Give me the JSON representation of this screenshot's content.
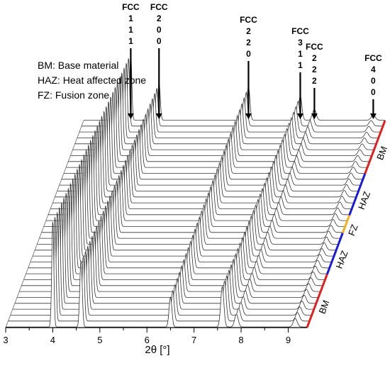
{
  "chart_data": {
    "type": "line",
    "subtype": "waterfall-3d",
    "title": "",
    "xlabel": "2θ [°]",
    "ylabel": "",
    "xlim": [
      3,
      9.4
    ],
    "x_ticks": [
      "3",
      "4",
      "5",
      "6",
      "7",
      "8",
      "9"
    ],
    "n_scans": 36,
    "legend": [
      "BM: Base material",
      "HAZ: Heat affected zone",
      "FZ: Fusion zone"
    ],
    "peaks": [
      {
        "label": [
          "FCC",
          "1",
          "1",
          "1"
        ],
        "two_theta": 4.0
      },
      {
        "label": [
          "FCC",
          "2",
          "0",
          "0"
        ],
        "two_theta": 4.6
      },
      {
        "label": [
          "FCC",
          "2",
          "2",
          "0"
        ],
        "two_theta": 6.5
      },
      {
        "label": [
          "FCC",
          "3",
          "1",
          "1"
        ],
        "two_theta": 7.6
      },
      {
        "label": [
          "FCC",
          "2",
          "2",
          "2"
        ],
        "two_theta": 7.9
      },
      {
        "label": [
          "FCC",
          "4",
          "0",
          "0"
        ],
        "two_theta": 9.15
      }
    ],
    "zones": [
      {
        "name": "BM",
        "from_scan": 0,
        "to_scan": 9,
        "color": "#e02020"
      },
      {
        "name": "HAZ",
        "from_scan": 9,
        "to_scan": 16,
        "color": "#1a1adc"
      },
      {
        "name": "FZ",
        "from_scan": 16,
        "to_scan": 19,
        "color": "#f0b020"
      },
      {
        "name": "HAZ",
        "from_scan": 19,
        "to_scan": 26,
        "color": "#1a1adc"
      },
      {
        "name": "BM",
        "from_scan": 26,
        "to_scan": 36,
        "color": "#e02020"
      }
    ],
    "relative_intensities": {
      "front_scan": [
        1.0,
        0.62,
        0.28,
        0.38,
        0.12,
        0.08
      ],
      "back_scan": [
        1.0,
        0.55,
        0.5,
        0.36,
        0.16,
        0.08
      ]
    }
  }
}
